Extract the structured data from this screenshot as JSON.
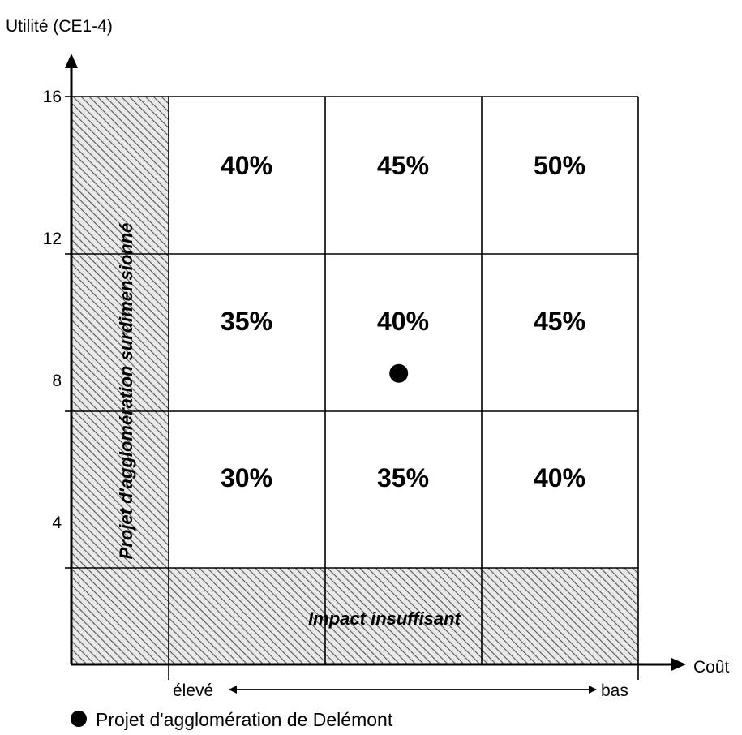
{
  "chart_data": {
    "type": "table",
    "ylabel": "Utilité (CE1-4)",
    "xlabel": "Coût",
    "yticks": [
      4,
      8,
      12,
      16
    ],
    "ylim": [
      0,
      16
    ],
    "x_scale_labels": {
      "high": "élevé",
      "low": "bas"
    },
    "columns": 3,
    "rows": [
      {
        "range": [
          12,
          16
        ],
        "values": [
          "40%",
          "45%",
          "50%"
        ]
      },
      {
        "range": [
          8,
          12
        ],
        "values": [
          "35%",
          "40%",
          "45%"
        ]
      },
      {
        "range": [
          4,
          8
        ],
        "values": [
          "30%",
          "35%",
          "40%"
        ]
      }
    ],
    "zones": {
      "left": "Projet d'agglomération surdimensionné",
      "bottom": "Impact insuffisant"
    },
    "point": {
      "label": "Projet d'agglomération de Delémont",
      "cost_position": 0.49,
      "utility": 8.2
    },
    "colors": {
      "line": "#000000",
      "hatch_bg": "#e9e9e9",
      "hatch_line": "#555555",
      "point": "#000000"
    }
  }
}
